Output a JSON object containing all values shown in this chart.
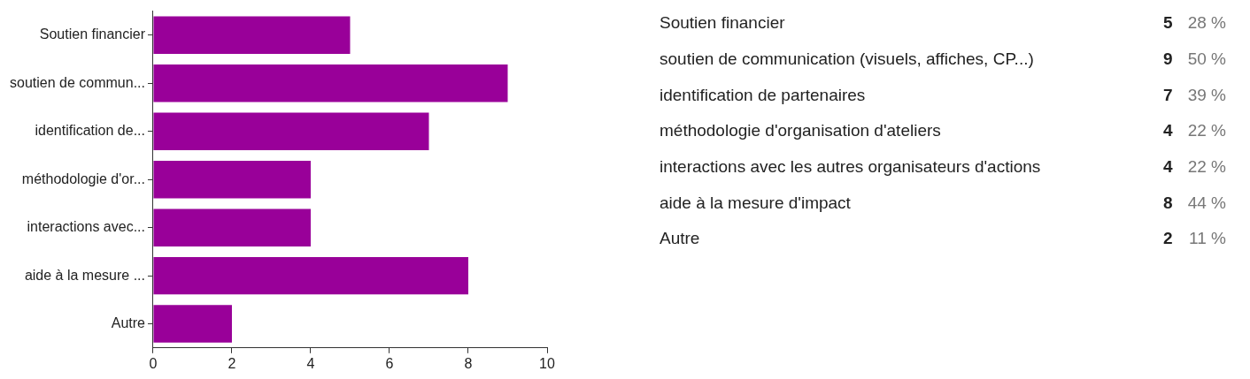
{
  "chart_data": [
    {
      "type": "bar",
      "orientation": "horizontal",
      "categories": [
        "Soutien financier",
        "soutien de commun...",
        "identification de...",
        "méthodologie d'or...",
        "interactions avec...",
        "aide à la mesure ...",
        "Autre"
      ],
      "values": [
        5,
        9,
        7,
        4,
        4,
        8,
        2
      ],
      "color": "#990099",
      "xlim": [
        0,
        10
      ],
      "xticks": [
        0,
        2,
        4,
        6,
        8,
        10
      ],
      "grid": false,
      "legend": false
    },
    {
      "type": "other",
      "categories": [
        "Soutien financier",
        "soutien de communication (visuels, affiches, CP...)",
        "identification de partenaires",
        "méthodologie d'organisation d'ateliers",
        "interactions avec les autres organisateurs d'actions",
        "aide à la mesure d'impact",
        "Autre"
      ],
      "values": [
        5,
        9,
        7,
        4,
        4,
        8,
        2
      ],
      "data_labels": true,
      "annotations": [
        "28 %",
        "50 %",
        "39 %",
        "22 %",
        "22 %",
        "44 %",
        "11 %"
      ]
    }
  ]
}
